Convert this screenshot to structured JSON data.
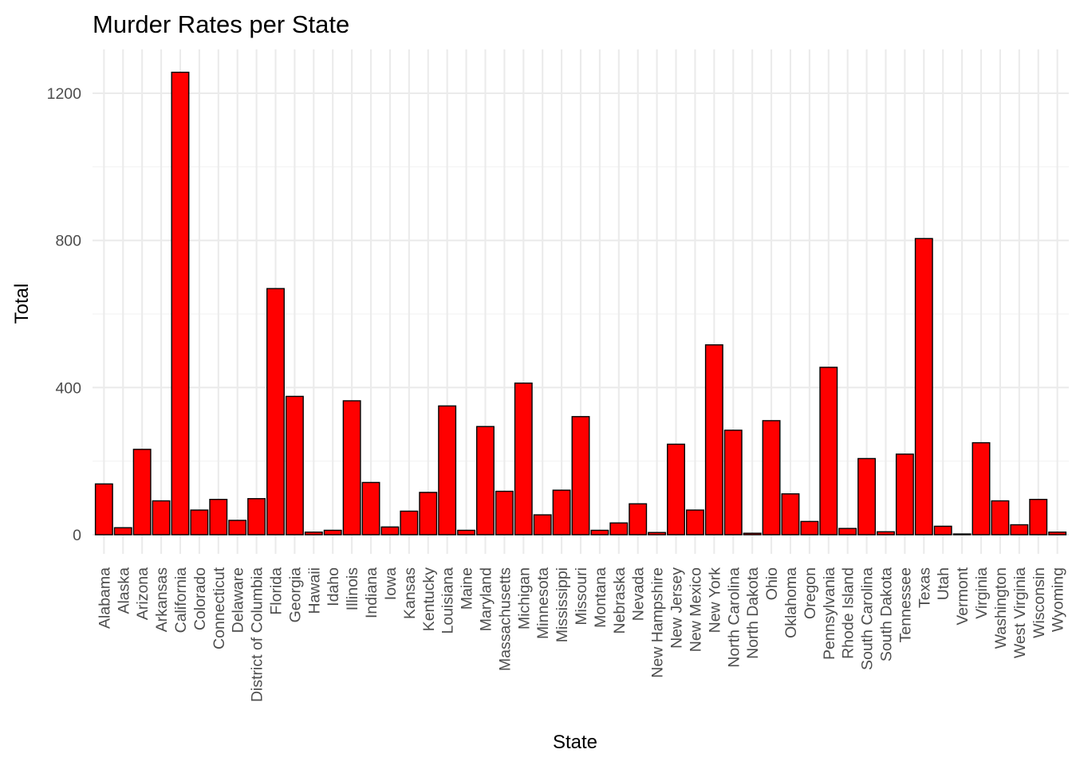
{
  "chart_data": {
    "type": "bar",
    "title": "Murder Rates per State",
    "xlabel": "State",
    "ylabel": "Total",
    "ylim": [
      -18,
      1310
    ],
    "y_ticks": [
      "0",
      "400",
      "800",
      "1200"
    ],
    "grid": true,
    "legend": "none",
    "bar_fill": "#ff0000",
    "bar_stroke": "#000000",
    "categories": [
      "Alabama",
      "Alaska",
      "Arizona",
      "Arkansas",
      "California",
      "Colorado",
      "Connecticut",
      "Delaware",
      "District of Columbia",
      "Florida",
      "Georgia",
      "Hawaii",
      "Idaho",
      "Illinois",
      "Indiana",
      "Iowa",
      "Kansas",
      "Kentucky",
      "Louisiana",
      "Maine",
      "Maryland",
      "Massachusetts",
      "Michigan",
      "Minnesota",
      "Mississippi",
      "Missouri",
      "Montana",
      "Nebraska",
      "Nevada",
      "New Hampshire",
      "New Jersey",
      "New Mexico",
      "New York",
      "North Carolina",
      "North Dakota",
      "Ohio",
      "Oklahoma",
      "Oregon",
      "Pennsylvania",
      "Rhode Island",
      "South Carolina",
      "South Dakota",
      "Tennessee",
      "Texas",
      "Utah",
      "Vermont",
      "Virginia",
      "Washington",
      "West Virginia",
      "Wisconsin",
      "Wyoming"
    ],
    "values": [
      138,
      19,
      232,
      92,
      1257,
      67,
      96,
      39,
      98,
      669,
      376,
      7,
      12,
      364,
      142,
      21,
      64,
      115,
      350,
      12,
      294,
      118,
      412,
      54,
      121,
      321,
      12,
      32,
      84,
      6,
      246,
      67,
      516,
      284,
      4,
      310,
      111,
      36,
      455,
      17,
      207,
      8,
      219,
      805,
      23,
      2,
      250,
      92,
      27,
      96,
      7
    ]
  }
}
